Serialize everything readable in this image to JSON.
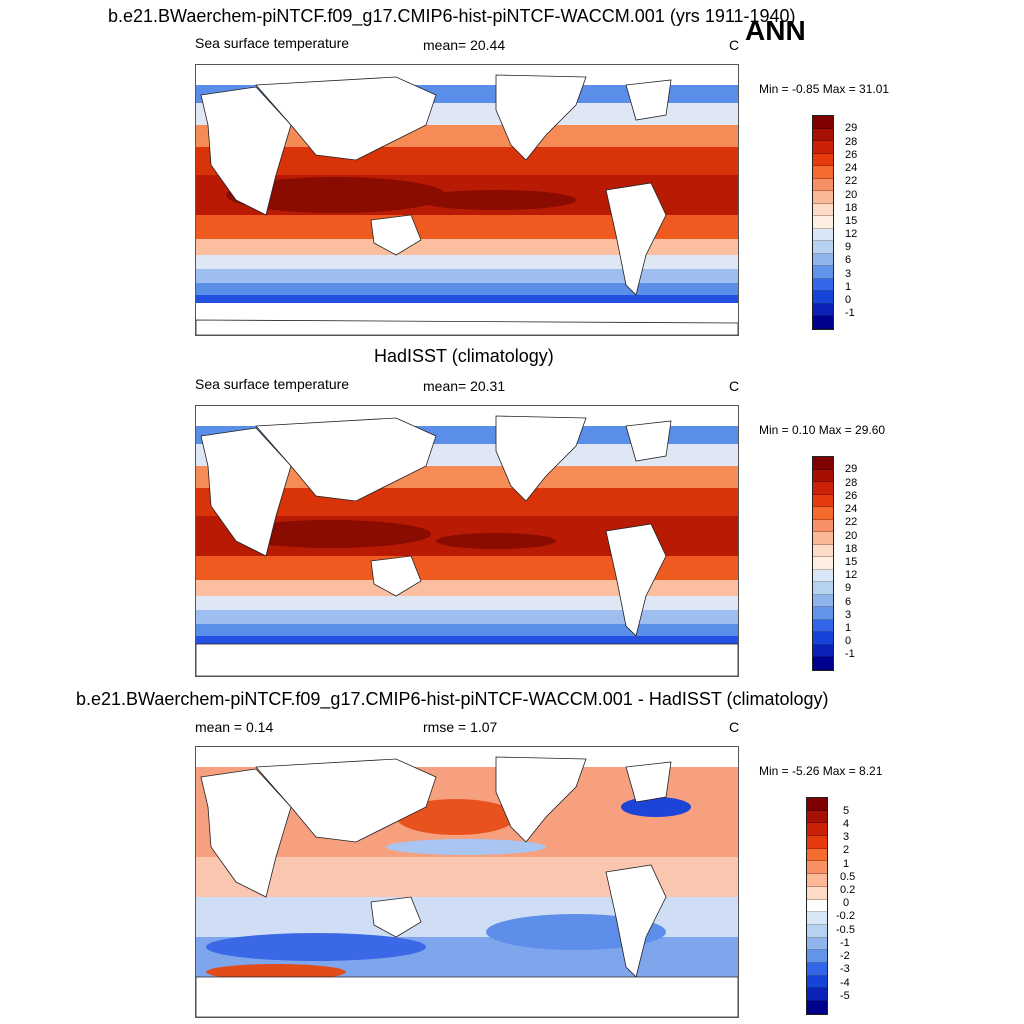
{
  "header": {
    "title": "b.e21.BWaerchem-piNTCF.f09_g17.CMIP6-hist-piNTCF-WACCM.001 (yrs 1911-1940)",
    "season": "ANN"
  },
  "panel1": {
    "left": "Sea surface temperature",
    "center": "mean=  20.44",
    "unit": "C",
    "minmax": "Min =  -0.85 Max =  31.01",
    "levels": [
      "29",
      "28",
      "26",
      "24",
      "22",
      "20",
      "18",
      "15",
      "12",
      "9",
      "6",
      "3",
      "1",
      "0",
      "-1"
    ],
    "colors": [
      "#7f0000",
      "#a50f04",
      "#cb2106",
      "#e73b0e",
      "#f56a2d",
      "#f99065",
      "#fbb896",
      "#fddbc7",
      "#fdf0e2",
      "#d8e7f5",
      "#b5d2f0",
      "#8fb5ec",
      "#6194ea",
      "#3366e9",
      "#1744d8",
      "#0a22b5",
      "#00008f"
    ],
    "map": {
      "colors": [
        "#8a0b00",
        "#b81a03",
        "#d9330a",
        "#ef5a20",
        "#f78b55",
        "#fbbfa0",
        "#dfe7f5",
        "#9ebef0",
        "#5a8ee8",
        "#2350e0",
        "#0a2ac0"
      ]
    }
  },
  "panel2": {
    "heading": "HadISST (climatology)",
    "left": "Sea surface temperature",
    "center": "mean=  20.31",
    "unit": "C",
    "minmax": "Min =   0.10 Max =  29.60",
    "levels": [
      "29",
      "28",
      "26",
      "24",
      "22",
      "20",
      "18",
      "15",
      "12",
      "9",
      "6",
      "3",
      "1",
      "0",
      "-1"
    ],
    "colors": [
      "#7f0000",
      "#a50f04",
      "#cb2106",
      "#e73b0e",
      "#f56a2d",
      "#f99065",
      "#fbb896",
      "#fddbc7",
      "#fdf0e2",
      "#d8e7f5",
      "#b5d2f0",
      "#8fb5ec",
      "#6194ea",
      "#3366e9",
      "#1744d8",
      "#0a22b5",
      "#00008f"
    ],
    "map": {
      "colors": [
        "#8a0b00",
        "#b81a03",
        "#d9330a",
        "#ef5a20",
        "#f78b55",
        "#fbbfa0",
        "#dfe7f5",
        "#9ebef0",
        "#5a8ee8",
        "#2350e0",
        "#0a2ac0"
      ]
    }
  },
  "panel3": {
    "heading": "b.e21.BWaerchem-piNTCF.f09_g17.CMIP6-hist-piNTCF-WACCM.001 - HadISST (climatology)",
    "left": "mean =   0.14",
    "center": "rmse =   1.07",
    "unit": "C",
    "minmax": "Min =  -5.26 Max =   8.21",
    "levels": [
      "5",
      "4",
      "3",
      "2",
      "1",
      "0.5",
      "0.2",
      "0",
      "-0.2",
      "-0.5",
      "-1",
      "-2",
      "-3",
      "-4",
      "-5"
    ],
    "colors": [
      "#7f0000",
      "#a50f04",
      "#cb2106",
      "#e73b0e",
      "#f56a2d",
      "#f99065",
      "#fbb896",
      "#fddbc7",
      "#ffffff",
      "#d8e7f5",
      "#b5d2f0",
      "#8fb5ec",
      "#6194ea",
      "#3366e9",
      "#1744d8",
      "#0a22b5",
      "#00008f"
    ]
  }
}
